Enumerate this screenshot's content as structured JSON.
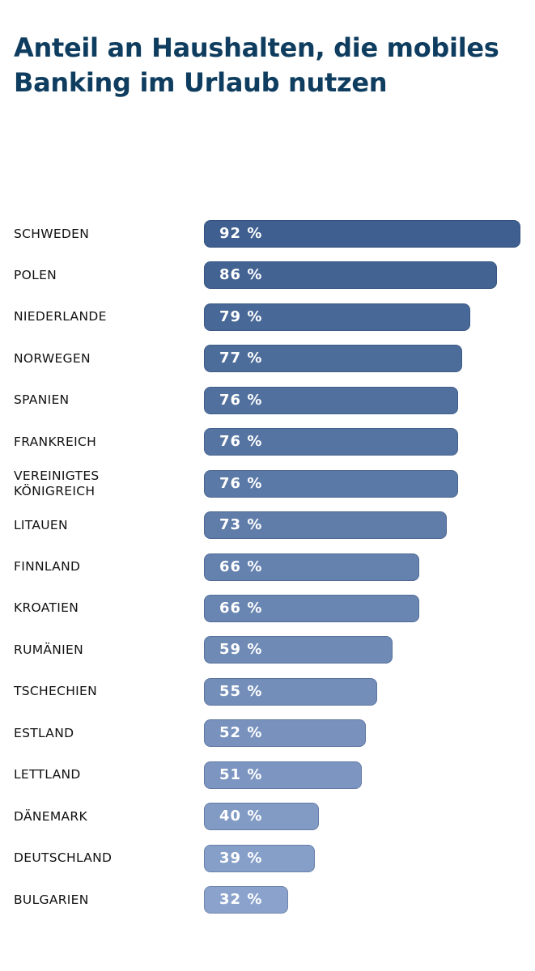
{
  "chart_data": {
    "type": "bar",
    "orientation": "horizontal",
    "title": "Anteil an Haushalten, die mobiles Banking im Urlaub nutzen",
    "categories": [
      "SCHWEDEN",
      "POLEN",
      "NIEDERLANDE",
      "NORWEGEN",
      "SPANIEN",
      "FRANKREICH",
      "VEREINIGTES\nKÖNIGREICH",
      "LITAUEN",
      "FINNLAND",
      "KROATIEN",
      "RUMÄNIEN",
      "TSCHECHIEN",
      "ESTLAND",
      "LETTLAND",
      "DÄNEMARK",
      "DEUTSCHLAND",
      "BULGARIEN"
    ],
    "values": [
      92,
      86,
      79,
      77,
      76,
      76,
      76,
      73,
      66,
      66,
      59,
      55,
      52,
      51,
      40,
      39,
      32
    ],
    "value_labels": [
      "92 %",
      "86 %",
      "79 %",
      "77 %",
      "76 %",
      "76 %",
      "76 %",
      "73 %",
      "66 %",
      "66 %",
      "59 %",
      "55 %",
      "52 %",
      "51 %",
      "40 %",
      "39 %",
      "32 %"
    ],
    "unit": "%",
    "colors": {
      "darkest": "#3e5f8f",
      "lightest": "#8ba3cc",
      "title": "#0f3d5f"
    },
    "grid": false
  }
}
